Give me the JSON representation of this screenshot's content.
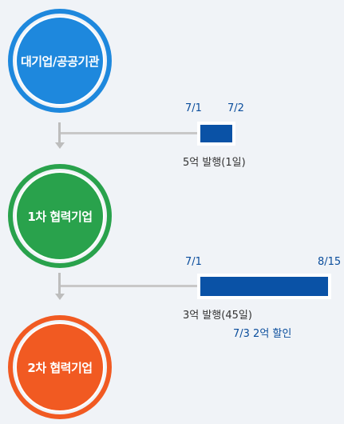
{
  "nodes": {
    "large": {
      "label": "대기업/공공기관",
      "color": "#1e88dd"
    },
    "tier1": {
      "label": "1차 협력기업",
      "color": "#29a24c"
    },
    "tier2": {
      "label": "2차 협력기업",
      "color": "#f15a22"
    }
  },
  "payment1": {
    "start_date": "7/1",
    "end_date": "7/2",
    "description": "5억 발행(1일)",
    "bar_color": "#0a52a6"
  },
  "payment2": {
    "start_date": "7/1",
    "end_date": "8/15",
    "description": "3억 발행(45일)",
    "discount": "7/3 2억 할인",
    "bar_color": "#0a52a6"
  }
}
